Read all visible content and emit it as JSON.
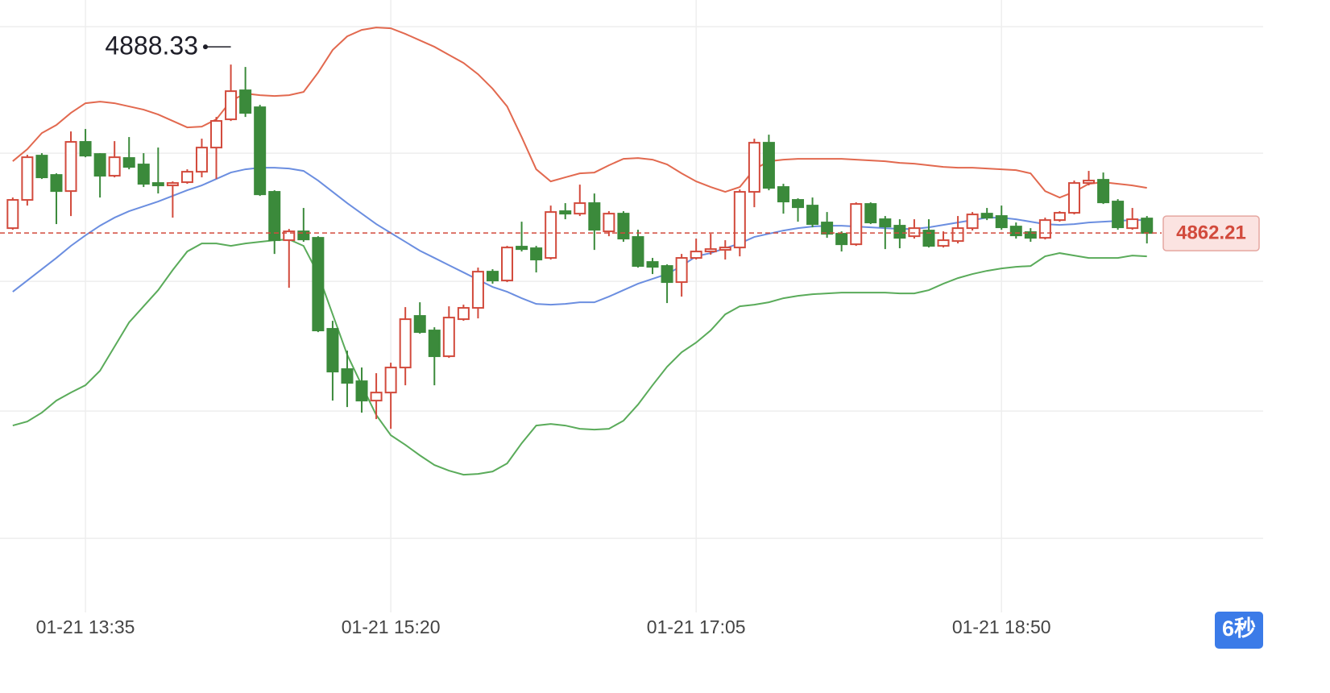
{
  "chart_data": {
    "type": "candlestick",
    "categories": [
      null,
      null,
      null,
      null,
      null,
      "01-21 13:35",
      null,
      null,
      null,
      null,
      null,
      null,
      null,
      null,
      null,
      null,
      null,
      null,
      null,
      null,
      null,
      null,
      null,
      null,
      null,
      null,
      "01-21 15:20",
      null,
      null,
      null,
      null,
      null,
      null,
      null,
      null,
      null,
      null,
      null,
      null,
      null,
      null,
      null,
      null,
      null,
      null,
      null,
      null,
      "01-21 17:05",
      null,
      null,
      null,
      null,
      null,
      null,
      null,
      null,
      null,
      null,
      null,
      null,
      null,
      null,
      null,
      null,
      null,
      null,
      null,
      null,
      "01-21 18:50",
      null,
      null,
      null,
      null,
      null,
      null,
      null,
      null,
      null,
      null
    ],
    "open": [
      4862.96,
      4867.34,
      4874.21,
      4871.21,
      4868.71,
      4876.34,
      4874.46,
      4871.09,
      4873.84,
      4872.84,
      4869.96,
      4869.59,
      4870.09,
      4871.71,
      4875.46,
      4879.84,
      4884.34,
      4881.71,
      4868.59,
      4861.09,
      4862.46,
      4861.46,
      4847.34,
      4841.09,
      4839.21,
      4836.21,
      4837.46,
      4841.34,
      4849.34,
      4847.09,
      4843.09,
      4848.84,
      4850.59,
      4856.21,
      4854.84,
      4860.09,
      4859.84,
      4858.34,
      4865.59,
      4865.21,
      4866.84,
      4862.46,
      4865.21,
      4861.59,
      4857.71,
      4857.09,
      4854.59,
      4858.34,
      4859.34,
      4859.59,
      4859.96,
      4868.59,
      4876.21,
      4869.34,
      4867.34,
      4866.46,
      4863.84,
      4862.09,
      4860.46,
      4866.71,
      4864.34,
      4863.34,
      4861.71,
      4862.59,
      4860.21,
      4860.96,
      4862.96,
      4865.21,
      4864.84,
      4863.21,
      4862.34,
      4861.46,
      4864.21,
      4865.34,
      4869.96,
      4870.46,
      4867.09,
      4862.96,
      4864.46
    ],
    "high": [
      4867.71,
      4874.34,
      4874.59,
      4871.46,
      4877.96,
      4878.34,
      4874.59,
      4876.46,
      4877.09,
      4874.59,
      4875.46,
      4870.21,
      4872.09,
      4876.84,
      4880.21,
      4888.33,
      4887.96,
      4882.09,
      4868.84,
      4862.84,
      4866.09,
      4861.71,
      4848.59,
      4843.96,
      4841.34,
      4840.46,
      4842.09,
      4850.71,
      4851.46,
      4847.59,
      4850.84,
      4851.09,
      4856.84,
      4856.59,
      4860.21,
      4863.96,
      4860.21,
      4866.46,
      4866.84,
      4869.71,
      4868.34,
      4865.59,
      4865.59,
      4862.71,
      4858.34,
      4857.34,
      4858.96,
      4861.34,
      4862.09,
      4861.09,
      4868.96,
      4876.84,
      4877.46,
      4869.84,
      4867.59,
      4867.71,
      4865.46,
      4862.46,
      4866.96,
      4866.96,
      4864.84,
      4864.34,
      4864.34,
      4864.34,
      4862.46,
      4864.84,
      4865.46,
      4866.09,
      4866.46,
      4863.84,
      4862.96,
      4864.59,
      4865.59,
      4870.34,
      4871.84,
      4871.59,
      4867.46,
      4866.09,
      4864.84
    ],
    "low": [
      4862.71,
      4866.46,
      4870.59,
      4863.59,
      4864.84,
      4873.96,
      4867.71,
      4870.84,
      4872.09,
      4869.34,
      4868.34,
      4864.59,
      4869.84,
      4870.84,
      4870.59,
      4879.59,
      4880.21,
      4867.96,
      4858.96,
      4853.71,
      4860.84,
      4846.84,
      4836.21,
      4835.21,
      4834.34,
      4833.34,
      4831.84,
      4838.59,
      4846.59,
      4838.59,
      4842.84,
      4848.59,
      4848.96,
      4854.34,
      4854.59,
      4859.34,
      4856.09,
      4858.09,
      4864.34,
      4864.84,
      4859.59,
      4861.71,
      4860.84,
      4856.84,
      4855.84,
      4851.34,
      4852.34,
      4858.09,
      4858.84,
      4858.09,
      4858.59,
      4866.21,
      4868.84,
      4865.21,
      4863.96,
      4863.09,
      4861.46,
      4859.34,
      4860.21,
      4863.59,
      4859.71,
      4859.84,
      4861.34,
      4859.96,
      4859.96,
      4860.59,
      4862.59,
      4864.21,
      4862.71,
      4861.34,
      4860.84,
      4861.21,
      4863.96,
      4865.09,
      4869.59,
      4866.71,
      4862.71,
      4862.71,
      4860.59
    ],
    "close": [
      4867.34,
      4873.96,
      4870.84,
      4868.71,
      4876.34,
      4874.21,
      4871.09,
      4873.96,
      4872.46,
      4869.84,
      4869.59,
      4869.96,
      4871.71,
      4875.46,
      4879.59,
      4884.21,
      4880.84,
      4868.21,
      4861.09,
      4862.46,
      4861.21,
      4847.09,
      4840.71,
      4838.96,
      4836.21,
      4837.46,
      4841.34,
      4848.84,
      4846.84,
      4843.09,
      4849.09,
      4850.59,
      4856.21,
      4854.84,
      4859.96,
      4859.71,
      4858.09,
      4865.46,
      4865.21,
      4866.84,
      4862.71,
      4865.21,
      4861.34,
      4857.09,
      4856.96,
      4854.59,
      4858.34,
      4859.34,
      4859.71,
      4859.96,
      4868.59,
      4876.21,
      4869.21,
      4867.09,
      4866.21,
      4863.59,
      4862.09,
      4860.46,
      4866.71,
      4863.84,
      4863.21,
      4861.46,
      4862.96,
      4860.21,
      4861.09,
      4862.96,
      4865.09,
      4864.59,
      4863.09,
      4861.84,
      4861.46,
      4864.21,
      4865.34,
      4869.96,
      4870.34,
      4866.96,
      4863.09,
      4864.34,
      4862.21
    ],
    "up_color": "#d24a3c",
    "down_color": "#3b8a3b",
    "overlays": [
      {
        "color": "#e2694f",
        "values": [
          4873.34,
          4875.21,
          4877.71,
          4878.96,
          4880.84,
          4882.34,
          4882.59,
          4882.34,
          4881.84,
          4881.34,
          4880.59,
          4879.59,
          4878.59,
          4878.71,
          4879.84,
          4882.71,
          4883.84,
          4883.59,
          4883.46,
          4883.59,
          4884.09,
          4887.09,
          4890.59,
          4892.71,
          4893.71,
          4894.09,
          4893.96,
          4893.09,
          4892.09,
          4891.09,
          4889.84,
          4888.59,
          4886.84,
          4884.59,
          4881.84,
          4877.09,
          4872.09,
          4870.21,
          4870.84,
          4871.46,
          4871.59,
          4872.71,
          4873.71,
          4873.84,
          4873.59,
          4872.84,
          4871.46,
          4870.21,
          4869.34,
          4868.59,
          4869.34,
          4872.09,
          4873.34,
          4873.59,
          4873.71,
          4873.71,
          4873.71,
          4873.71,
          4873.59,
          4873.46,
          4873.34,
          4873.09,
          4872.96,
          4872.71,
          4872.46,
          4872.34,
          4872.34,
          4872.21,
          4872.09,
          4871.96,
          4871.46,
          4868.71,
          4867.71,
          4868.59,
          4869.84,
          4870.09,
          4869.84,
          4869.59,
          4869.21
        ]
      },
      {
        "color": "#6b8ee0",
        "values": [
          4853.09,
          4854.84,
          4856.59,
          4858.34,
          4860.21,
          4861.84,
          4863.34,
          4864.59,
          4865.59,
          4866.34,
          4867.09,
          4867.96,
          4868.84,
          4869.59,
          4870.59,
          4871.59,
          4872.09,
          4872.34,
          4872.34,
          4872.21,
          4871.84,
          4870.34,
          4868.59,
          4866.84,
          4865.21,
          4863.59,
          4862.21,
          4860.84,
          4859.46,
          4858.34,
          4857.21,
          4856.09,
          4854.96,
          4853.84,
          4853.09,
          4852.09,
          4851.21,
          4851.09,
          4851.21,
          4851.46,
          4851.46,
          4852.34,
          4853.34,
          4854.34,
          4855.09,
          4855.84,
          4857.09,
          4858.59,
          4859.09,
          4859.84,
          4860.59,
          4861.59,
          4862.09,
          4862.59,
          4862.96,
          4863.21,
          4863.34,
          4863.34,
          4863.21,
          4863.09,
          4862.96,
          4862.84,
          4862.84,
          4863.09,
          4863.46,
          4863.84,
          4864.21,
          4864.59,
          4864.59,
          4864.34,
          4863.96,
          4863.59,
          4863.46,
          4863.59,
          4863.84,
          4863.96,
          4864.09,
          4864.21,
          4864.21
        ]
      },
      {
        "color": "#5aab5a",
        "values": [
          4832.34,
          4832.96,
          4834.34,
          4836.21,
          4837.46,
          4838.59,
          4840.84,
          4844.59,
          4848.34,
          4850.84,
          4853.34,
          4856.46,
          4859.34,
          4860.59,
          4860.59,
          4860.21,
          4860.59,
          4860.84,
          4861.09,
          4861.21,
          4860.21,
          4855.84,
          4849.59,
          4843.34,
          4838.59,
          4833.96,
          4830.84,
          4829.34,
          4827.71,
          4826.21,
          4825.34,
          4824.71,
          4824.84,
          4825.21,
          4826.46,
          4829.59,
          4832.34,
          4832.59,
          4832.34,
          4831.84,
          4831.71,
          4831.84,
          4833.09,
          4835.59,
          4838.59,
          4841.46,
          4843.71,
          4845.21,
          4847.09,
          4849.59,
          4850.84,
          4851.09,
          4851.46,
          4852.09,
          4852.46,
          4852.71,
          4852.84,
          4852.96,
          4852.96,
          4852.96,
          4852.96,
          4852.84,
          4852.84,
          4853.34,
          4854.34,
          4855.21,
          4855.84,
          4856.34,
          4856.71,
          4856.96,
          4857.09,
          4858.59,
          4859.09,
          4858.71,
          4858.34,
          4858.34,
          4858.34,
          4858.71,
          4858.59
        ]
      }
    ],
    "ylim": [
      4803.35,
      4898.35
    ],
    "ygrid": [
      4894.21,
      4874.59,
      4854.71,
      4834.59,
      4814.84
    ],
    "grid": true,
    "badge": "6秒"
  }
}
